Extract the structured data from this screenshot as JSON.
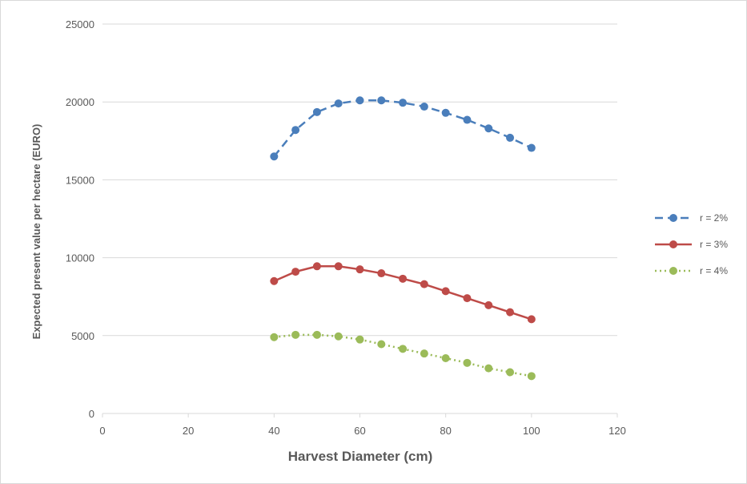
{
  "chart_data": {
    "type": "line",
    "title": "",
    "xlabel": "Harvest Diameter (cm)",
    "ylabel": "Expected present value per hectare (EURO)",
    "xlim": [
      0,
      120
    ],
    "ylim": [
      0,
      25000
    ],
    "xticks": [
      0,
      20,
      40,
      60,
      80,
      100,
      120
    ],
    "yticks": [
      0,
      5000,
      10000,
      15000,
      20000,
      25000
    ],
    "grid": "horizontal",
    "legend_position": "right",
    "x": [
      40,
      45,
      50,
      55,
      60,
      65,
      70,
      75,
      80,
      85,
      90,
      95,
      100
    ],
    "series": [
      {
        "name": "r = 2%",
        "color": "#4a7ebb",
        "dash": "dashed",
        "values": [
          16500,
          18200,
          19350,
          19900,
          20100,
          20100,
          19950,
          19700,
          19300,
          18850,
          18300,
          17700,
          17050
        ]
      },
      {
        "name": "r = 3%",
        "color": "#be4b48",
        "dash": "solid",
        "values": [
          8500,
          9100,
          9450,
          9450,
          9250,
          9000,
          8650,
          8300,
          7850,
          7400,
          6950,
          6500,
          6050
        ]
      },
      {
        "name": "r = 4%",
        "color": "#9bbb59",
        "dash": "dotted",
        "values": [
          4900,
          5050,
          5050,
          4950,
          4750,
          4450,
          4150,
          3850,
          3550,
          3250,
          2900,
          2650,
          2400
        ]
      }
    ]
  }
}
